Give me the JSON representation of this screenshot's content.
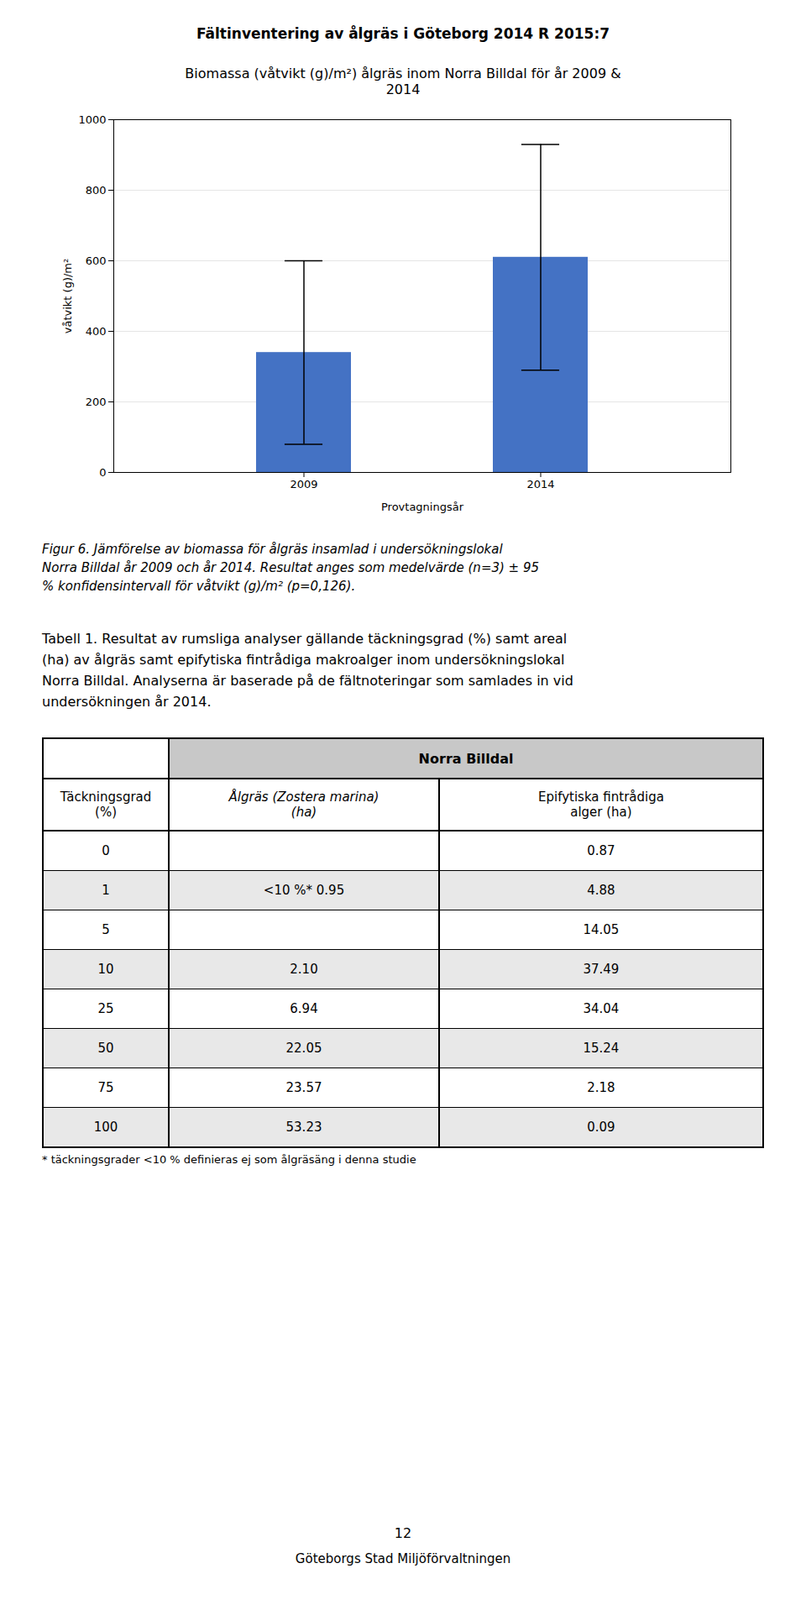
{
  "page_title": "Fältinventering av ålgräs i Göteborg 2014  R 2015:7",
  "chart_data": {
    "type": "bar",
    "title": "Biomassa (våtvikt (g)/m²) ålgräs inom Norra Billdal för år 2009 &\n2014",
    "categories": [
      "2009",
      "2014"
    ],
    "values": [
      340,
      610
    ],
    "errors": [
      260,
      320
    ],
    "color": "#4472C4",
    "xlabel": "Provtagningsår",
    "ylabel": "våtvikt (g)/m²",
    "ylim": [
      0,
      1000
    ],
    "yticks": [
      0,
      200,
      400,
      600,
      800,
      1000
    ],
    "grid": true
  },
  "caption": [
    "Figur 6. Jämförelse av biomassa för ålgräs insamlad i undersökningslokal",
    "Norra Billdal år 2009 och år 2014. Resultat anges som medelvärde (n=3) ± 95",
    "% konfidensintervall för våtvikt (g)/m² (p=0,126)."
  ],
  "table_heading": [
    "Tabell 1. Resultat av rumsliga analyser gällande täckningsgrad (%) samt areal",
    "(ha) av ålgräs samt epifytiska fintrådiga makroalger inom undersökningslokal",
    "Norra Billdal. Analyserna är baserade på de fältnoteringar som samlades in vid",
    "undersökningen år 2014."
  ],
  "table": {
    "group_header": "Norra Billdal",
    "columns": [
      [
        "Täckningsgrad",
        "(%)"
      ],
      [
        "Ålgräs (Zostera marina)",
        "(ha)"
      ],
      [
        "Epifytiska fintrådiga",
        "alger (ha)"
      ]
    ],
    "rows": [
      [
        "0",
        null,
        "0.87"
      ],
      [
        "1",
        "<10 %*   0.95",
        "4.88"
      ],
      [
        "5",
        null,
        "14.05"
      ],
      [
        "10",
        "2.10",
        "37.49"
      ],
      [
        "25",
        "6.94",
        "34.04"
      ],
      [
        "50",
        "22.05",
        "15.24"
      ],
      [
        "75",
        "23.57",
        "2.18"
      ],
      [
        "100",
        "53.23",
        "0.09"
      ]
    ]
  },
  "table_footnote": "* täckningsgrader <10 % definieras ej som ålgräsäng i denna studie",
  "page_number": "12",
  "page_footer": "Göteborgs Stad Miljöförvaltningen"
}
